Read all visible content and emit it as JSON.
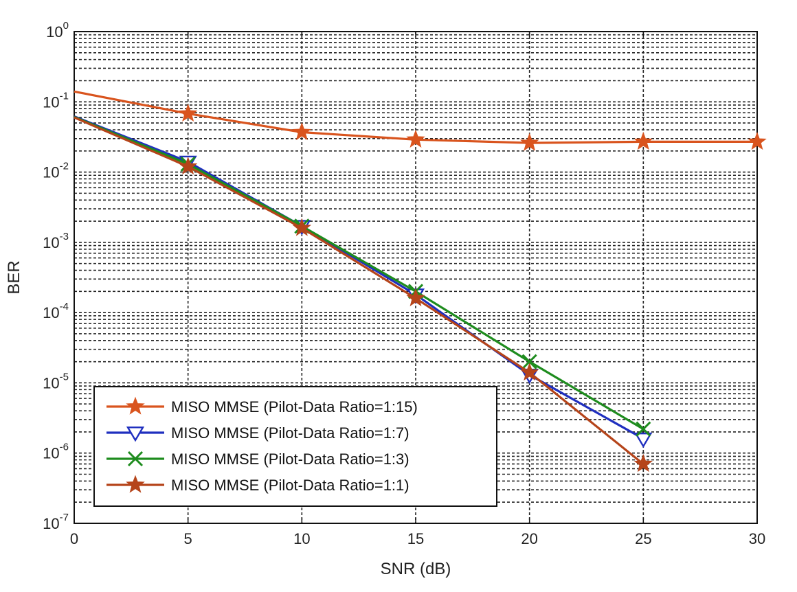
{
  "chart_data": {
    "type": "line",
    "title": "",
    "xlabel": "SNR (dB)",
    "ylabel": "BER",
    "xlim": [
      0,
      30
    ],
    "ylim": [
      1e-07,
      1
    ],
    "yscale": "log",
    "grid": true,
    "legend_position": "bottom-left",
    "x_ticks": [
      "0",
      "5",
      "10",
      "15",
      "20",
      "25",
      "30"
    ],
    "y_ticks": [
      {
        "base": "10",
        "exp": "0"
      },
      {
        "base": "10",
        "exp": "-1"
      },
      {
        "base": "10",
        "exp": "-2"
      },
      {
        "base": "10",
        "exp": "-3"
      },
      {
        "base": "10",
        "exp": "-4"
      },
      {
        "base": "10",
        "exp": "-5"
      },
      {
        "base": "10",
        "exp": "-6"
      },
      {
        "base": "10",
        "exp": "-7"
      }
    ],
    "series": [
      {
        "name": "MISO MMSE (Pilot-Data Ratio=1:15)",
        "color": "#d9541e",
        "marker": "star",
        "x": [
          0,
          5,
          10,
          15,
          20,
          25,
          30
        ],
        "y": [
          0.14,
          0.068,
          0.037,
          0.029,
          0.026,
          0.027,
          0.027
        ]
      },
      {
        "name": "MISO MMSE (Pilot-Data Ratio=1:7)",
        "color": "#1f2fbf",
        "marker": "triangle-down",
        "x": [
          0,
          5,
          10,
          15,
          20,
          25
        ],
        "y": [
          0.062,
          0.014,
          0.0017,
          0.00018,
          1.3e-05,
          1.6e-06
        ]
      },
      {
        "name": "MISO MMSE (Pilot-Data Ratio=1:3)",
        "color": "#1e8c1e",
        "marker": "x",
        "x": [
          0,
          5,
          10,
          15,
          20,
          25
        ],
        "y": [
          0.061,
          0.013,
          0.0017,
          0.0002,
          2e-05,
          2.2e-06
        ]
      },
      {
        "name": "MISO MMSE (Pilot-Data Ratio=1:1)",
        "color": "#b5441a",
        "marker": "star",
        "x": [
          0,
          5,
          10,
          15,
          20,
          25
        ],
        "y": [
          0.06,
          0.012,
          0.0016,
          0.00016,
          1.4e-05,
          7e-07
        ]
      }
    ]
  }
}
